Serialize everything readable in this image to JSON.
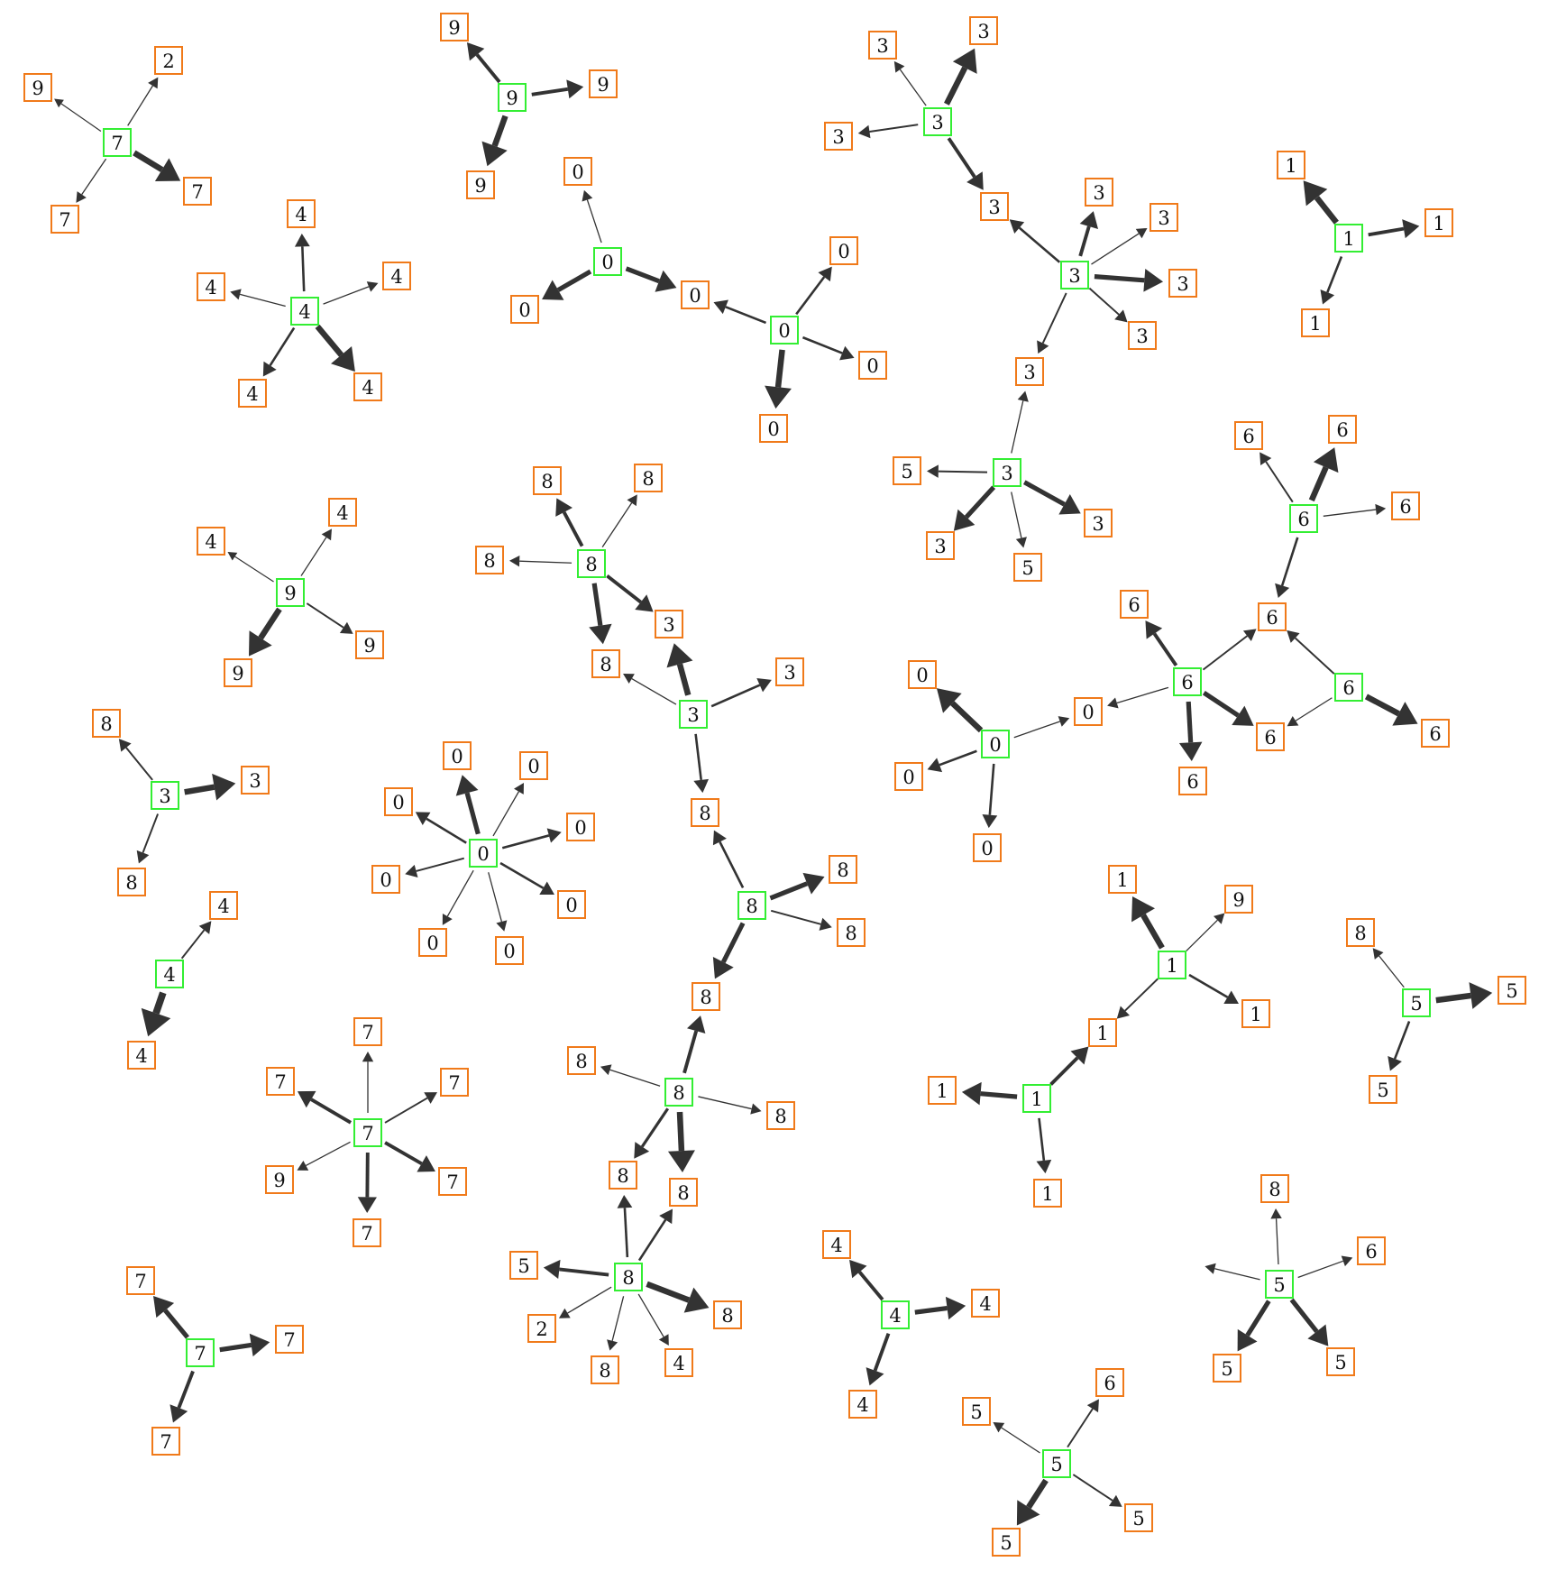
{
  "colors": {
    "center": "#33ee33",
    "neighbor": "#f07a1a",
    "arrow": "#333333"
  },
  "nodes": [
    {
      "id": "c7a",
      "label": "7",
      "role": "center"
    },
    {
      "id": "n2",
      "label": "2",
      "role": "neighbor"
    },
    {
      "id": "n9a",
      "label": "9",
      "role": "neighbor"
    },
    {
      "id": "n7a",
      "label": "7",
      "role": "neighbor"
    },
    {
      "id": "n7b",
      "label": "7",
      "role": "neighbor"
    },
    {
      "id": "c9a",
      "label": "9",
      "role": "center"
    },
    {
      "id": "n9b",
      "label": "9",
      "role": "neighbor"
    },
    {
      "id": "n9c",
      "label": "9",
      "role": "neighbor"
    },
    {
      "id": "n9d",
      "label": "9",
      "role": "neighbor"
    },
    {
      "id": "c4a",
      "label": "4",
      "role": "center"
    },
    {
      "id": "n4a",
      "label": "4",
      "role": "neighbor"
    },
    {
      "id": "n4b",
      "label": "4",
      "role": "neighbor"
    },
    {
      "id": "n4c",
      "label": "4",
      "role": "neighbor"
    },
    {
      "id": "n4d",
      "label": "4",
      "role": "neighbor"
    },
    {
      "id": "n4e",
      "label": "4",
      "role": "neighbor"
    },
    {
      "id": "c0a",
      "label": "0",
      "role": "center"
    },
    {
      "id": "n0a",
      "label": "0",
      "role": "neighbor"
    },
    {
      "id": "n0b",
      "label": "0",
      "role": "neighbor"
    },
    {
      "id": "n0c",
      "label": "0",
      "role": "neighbor"
    },
    {
      "id": "c0b",
      "label": "0",
      "role": "center"
    },
    {
      "id": "n0d",
      "label": "0",
      "role": "neighbor"
    },
    {
      "id": "n0e",
      "label": "0",
      "role": "neighbor"
    },
    {
      "id": "n0f",
      "label": "0",
      "role": "neighbor"
    },
    {
      "id": "c3a",
      "label": "3",
      "role": "center"
    },
    {
      "id": "n3a",
      "label": "3",
      "role": "neighbor"
    },
    {
      "id": "n3b",
      "label": "3",
      "role": "neighbor"
    },
    {
      "id": "n3c",
      "label": "3",
      "role": "neighbor"
    },
    {
      "id": "n3d",
      "label": "3",
      "role": "neighbor"
    },
    {
      "id": "c3b",
      "label": "3",
      "role": "center"
    },
    {
      "id": "n3e",
      "label": "3",
      "role": "neighbor"
    },
    {
      "id": "n3f",
      "label": "3",
      "role": "neighbor"
    },
    {
      "id": "n3g",
      "label": "3",
      "role": "neighbor"
    },
    {
      "id": "n3h",
      "label": "3",
      "role": "neighbor"
    },
    {
      "id": "n3i",
      "label": "3",
      "role": "neighbor"
    },
    {
      "id": "c3c",
      "label": "3",
      "role": "center"
    },
    {
      "id": "n5a",
      "label": "5",
      "role": "neighbor"
    },
    {
      "id": "n3j",
      "label": "3",
      "role": "neighbor"
    },
    {
      "id": "n3k",
      "label": "3",
      "role": "neighbor"
    },
    {
      "id": "n5b",
      "label": "5",
      "role": "neighbor"
    },
    {
      "id": "c1a",
      "label": "1",
      "role": "center"
    },
    {
      "id": "n1a",
      "label": "1",
      "role": "neighbor"
    },
    {
      "id": "n1b",
      "label": "1",
      "role": "neighbor"
    },
    {
      "id": "n1c",
      "label": "1",
      "role": "neighbor"
    },
    {
      "id": "c6a",
      "label": "6",
      "role": "center"
    },
    {
      "id": "n6a",
      "label": "6",
      "role": "neighbor"
    },
    {
      "id": "n6b",
      "label": "6",
      "role": "neighbor"
    },
    {
      "id": "n6c",
      "label": "6",
      "role": "neighbor"
    },
    {
      "id": "n6d",
      "label": "6",
      "role": "neighbor"
    },
    {
      "id": "c6b",
      "label": "6",
      "role": "center"
    },
    {
      "id": "n6e",
      "label": "6",
      "role": "neighbor"
    },
    {
      "id": "n0g",
      "label": "0",
      "role": "neighbor"
    },
    {
      "id": "n6f",
      "label": "6",
      "role": "neighbor"
    },
    {
      "id": "n6g",
      "label": "6",
      "role": "neighbor"
    },
    {
      "id": "c6c",
      "label": "6",
      "role": "center"
    },
    {
      "id": "n6h",
      "label": "6",
      "role": "neighbor"
    },
    {
      "id": "c0c",
      "label": "0",
      "role": "center"
    },
    {
      "id": "n0h",
      "label": "0",
      "role": "neighbor"
    },
    {
      "id": "n0i",
      "label": "0",
      "role": "neighbor"
    },
    {
      "id": "n0j",
      "label": "0",
      "role": "neighbor"
    },
    {
      "id": "c9b",
      "label": "9",
      "role": "center"
    },
    {
      "id": "n4f",
      "label": "4",
      "role": "neighbor"
    },
    {
      "id": "n4g",
      "label": "4",
      "role": "neighbor"
    },
    {
      "id": "n9e",
      "label": "9",
      "role": "neighbor"
    },
    {
      "id": "n9f",
      "label": "9",
      "role": "neighbor"
    },
    {
      "id": "c8a",
      "label": "8",
      "role": "center"
    },
    {
      "id": "n8a",
      "label": "8",
      "role": "neighbor"
    },
    {
      "id": "n8b",
      "label": "8",
      "role": "neighbor"
    },
    {
      "id": "n8c",
      "label": "8",
      "role": "neighbor"
    },
    {
      "id": "n3l",
      "label": "3",
      "role": "neighbor"
    },
    {
      "id": "n8d",
      "label": "8",
      "role": "neighbor"
    },
    {
      "id": "c3d",
      "label": "3",
      "role": "center"
    },
    {
      "id": "n3m",
      "label": "3",
      "role": "neighbor"
    },
    {
      "id": "n8e",
      "label": "8",
      "role": "neighbor"
    },
    {
      "id": "c3e",
      "label": "3",
      "role": "center"
    },
    {
      "id": "n8f",
      "label": "8",
      "role": "neighbor"
    },
    {
      "id": "n3n",
      "label": "3",
      "role": "neighbor"
    },
    {
      "id": "n8g",
      "label": "8",
      "role": "neighbor"
    },
    {
      "id": "c0d",
      "label": "0",
      "role": "center"
    },
    {
      "id": "n0k",
      "label": "0",
      "role": "neighbor"
    },
    {
      "id": "n0l",
      "label": "0",
      "role": "neighbor"
    },
    {
      "id": "n0m",
      "label": "0",
      "role": "neighbor"
    },
    {
      "id": "n0n",
      "label": "0",
      "role": "neighbor"
    },
    {
      "id": "n0o",
      "label": "0",
      "role": "neighbor"
    },
    {
      "id": "n0p",
      "label": "0",
      "role": "neighbor"
    },
    {
      "id": "n0q",
      "label": "0",
      "role": "neighbor"
    },
    {
      "id": "n0r",
      "label": "0",
      "role": "neighbor"
    },
    {
      "id": "c8b",
      "label": "8",
      "role": "center"
    },
    {
      "id": "n8h",
      "label": "8",
      "role": "neighbor"
    },
    {
      "id": "n8i",
      "label": "8",
      "role": "neighbor"
    },
    {
      "id": "c4b",
      "label": "4",
      "role": "center"
    },
    {
      "id": "n4h",
      "label": "4",
      "role": "neighbor"
    },
    {
      "id": "n4i",
      "label": "4",
      "role": "neighbor"
    },
    {
      "id": "c7b",
      "label": "7",
      "role": "center"
    },
    {
      "id": "n7c",
      "label": "7",
      "role": "neighbor"
    },
    {
      "id": "n7d",
      "label": "7",
      "role": "neighbor"
    },
    {
      "id": "n7e",
      "label": "7",
      "role": "neighbor"
    },
    {
      "id": "n9g",
      "label": "9",
      "role": "neighbor"
    },
    {
      "id": "n7f",
      "label": "7",
      "role": "neighbor"
    },
    {
      "id": "n7g",
      "label": "7",
      "role": "neighbor"
    },
    {
      "id": "c8c",
      "label": "8",
      "role": "center"
    },
    {
      "id": "n8j",
      "label": "8",
      "role": "neighbor"
    },
    {
      "id": "n8k",
      "label": "8",
      "role": "neighbor"
    },
    {
      "id": "n8l",
      "label": "8",
      "role": "neighbor"
    },
    {
      "id": "c8d",
      "label": "8",
      "role": "center"
    },
    {
      "id": "n8m",
      "label": "8",
      "role": "neighbor"
    },
    {
      "id": "n5c",
      "label": "5",
      "role": "neighbor"
    },
    {
      "id": "n2b",
      "label": "2",
      "role": "neighbor"
    },
    {
      "id": "n8n",
      "label": "8",
      "role": "neighbor"
    },
    {
      "id": "n8o",
      "label": "8",
      "role": "neighbor"
    },
    {
      "id": "n4j",
      "label": "4",
      "role": "neighbor"
    },
    {
      "id": "c7c",
      "label": "7",
      "role": "center"
    },
    {
      "id": "n7h",
      "label": "7",
      "role": "neighbor"
    },
    {
      "id": "n7i",
      "label": "7",
      "role": "neighbor"
    },
    {
      "id": "n7j",
      "label": "7",
      "role": "neighbor"
    },
    {
      "id": "c4c",
      "label": "4",
      "role": "center"
    },
    {
      "id": "n4k",
      "label": "4",
      "role": "neighbor"
    },
    {
      "id": "n4l",
      "label": "4",
      "role": "neighbor"
    },
    {
      "id": "n4m",
      "label": "4",
      "role": "neighbor"
    },
    {
      "id": "c1b",
      "label": "1",
      "role": "center"
    },
    {
      "id": "n1d",
      "label": "1",
      "role": "neighbor"
    },
    {
      "id": "n9h",
      "label": "9",
      "role": "neighbor"
    },
    {
      "id": "n1e",
      "label": "1",
      "role": "neighbor"
    },
    {
      "id": "n1f",
      "label": "1",
      "role": "neighbor"
    },
    {
      "id": "c1c",
      "label": "1",
      "role": "center"
    },
    {
      "id": "n1g",
      "label": "1",
      "role": "neighbor"
    },
    {
      "id": "n1h",
      "label": "1",
      "role": "neighbor"
    },
    {
      "id": "c5a",
      "label": "5",
      "role": "center"
    },
    {
      "id": "n8p",
      "label": "8",
      "role": "neighbor"
    },
    {
      "id": "n5d",
      "label": "5",
      "role": "neighbor"
    },
    {
      "id": "n5e",
      "label": "5",
      "role": "neighbor"
    },
    {
      "id": "c5b",
      "label": "5",
      "role": "center"
    },
    {
      "id": "n8q",
      "label": "8",
      "role": "neighbor"
    },
    {
      "id": "n8r",
      "label": "8",
      "role": "neighbor"
    },
    {
      "id": "n6i",
      "label": "6",
      "role": "neighbor"
    },
    {
      "id": "n5f",
      "label": "5",
      "role": "neighbor"
    },
    {
      "id": "n5g",
      "label": "5",
      "role": "neighbor"
    },
    {
      "id": "c5c",
      "label": "5",
      "role": "center"
    },
    {
      "id": "n6j",
      "label": "6",
      "role": "neighbor"
    },
    {
      "id": "n5h",
      "label": "5",
      "role": "neighbor"
    },
    {
      "id": "n5i",
      "label": "5",
      "role": "neighbor"
    },
    {
      "id": "n5j",
      "label": "5",
      "role": "neighbor"
    }
  ],
  "edges": [
    {
      "from": "c7a",
      "to": "n2",
      "weight": 1
    },
    {
      "from": "c7a",
      "to": "n9a",
      "weight": 0.5
    },
    {
      "from": "c7a",
      "to": "n7a",
      "weight": 1
    },
    {
      "from": "c7a",
      "to": "n7b",
      "weight": 5
    },
    {
      "from": "c9a",
      "to": "n9b",
      "weight": 3
    },
    {
      "from": "c9a",
      "to": "n9c",
      "weight": 3
    },
    {
      "from": "c9a",
      "to": "n9d",
      "weight": 5
    },
    {
      "from": "c4a",
      "to": "n4a",
      "weight": 2
    },
    {
      "from": "c4a",
      "to": "n4b",
      "weight": 1
    },
    {
      "from": "c4a",
      "to": "n4c",
      "weight": 1
    },
    {
      "from": "c4a",
      "to": "n4d",
      "weight": 2
    },
    {
      "from": "c4a",
      "to": "n4e",
      "weight": 5
    },
    {
      "from": "c0a",
      "to": "n0a",
      "weight": 1
    },
    {
      "from": "c0a",
      "to": "n0b",
      "weight": 4
    },
    {
      "from": "c0a",
      "to": "n0c",
      "weight": 4
    },
    {
      "from": "c0b",
      "to": "n0c",
      "weight": 2
    },
    {
      "from": "c0b",
      "to": "n0d",
      "weight": 2
    },
    {
      "from": "c0b",
      "to": "n0e",
      "weight": 2
    },
    {
      "from": "c0b",
      "to": "n0f",
      "weight": 5
    },
    {
      "from": "c3a",
      "to": "n3a",
      "weight": 1
    },
    {
      "from": "c3a",
      "to": "n3b",
      "weight": 5
    },
    {
      "from": "c3a",
      "to": "n3c",
      "weight": 1.5
    },
    {
      "from": "c3a",
      "to": "n3d",
      "weight": 3
    },
    {
      "from": "c3b",
      "to": "n3d",
      "weight": 2
    },
    {
      "from": "c3b",
      "to": "n3e",
      "weight": 3
    },
    {
      "from": "c3b",
      "to": "n3f",
      "weight": 1
    },
    {
      "from": "c3b",
      "to": "n3g",
      "weight": 4
    },
    {
      "from": "c3b",
      "to": "n3h",
      "weight": 1.5
    },
    {
      "from": "c3b",
      "to": "n3i",
      "weight": 1.5
    },
    {
      "from": "c3c",
      "to": "n3i",
      "weight": 1
    },
    {
      "from": "c3c",
      "to": "n5a",
      "weight": 1.5
    },
    {
      "from": "c3c",
      "to": "n3j",
      "weight": 4
    },
    {
      "from": "c3c",
      "to": "n3k",
      "weight": 4
    },
    {
      "from": "c3c",
      "to": "n5b",
      "weight": 1
    },
    {
      "from": "c1a",
      "to": "n1a",
      "weight": 5
    },
    {
      "from": "c1a",
      "to": "n1b",
      "weight": 3
    },
    {
      "from": "c1a",
      "to": "n1c",
      "weight": 2
    },
    {
      "from": "c6a",
      "to": "n6a",
      "weight": 1.5
    },
    {
      "from": "c6a",
      "to": "n6b",
      "weight": 5
    },
    {
      "from": "c6a",
      "to": "n6c",
      "weight": 1
    },
    {
      "from": "c6a",
      "to": "n6d",
      "weight": 2
    },
    {
      "from": "c6b",
      "to": "n6d",
      "weight": 1.5
    },
    {
      "from": "c6b",
      "to": "n6e",
      "weight": 3
    },
    {
      "from": "c6b",
      "to": "n0g",
      "weight": 1
    },
    {
      "from": "c6b",
      "to": "n6f",
      "weight": 4
    },
    {
      "from": "c6b",
      "to": "n6g",
      "weight": 4
    },
    {
      "from": "c6c",
      "to": "n6d",
      "weight": 1.5
    },
    {
      "from": "c6c",
      "to": "n6f",
      "weight": 1
    },
    {
      "from": "c6c",
      "to": "n6h",
      "weight": 5
    },
    {
      "from": "c0c",
      "to": "n0g",
      "weight": 1
    },
    {
      "from": "c0c",
      "to": "n0h",
      "weight": 5
    },
    {
      "from": "c0c",
      "to": "n0i",
      "weight": 2
    },
    {
      "from": "c0c",
      "to": "n0j",
      "weight": 2
    },
    {
      "from": "c9b",
      "to": "n4f",
      "weight": 0.5
    },
    {
      "from": "c9b",
      "to": "n4g",
      "weight": 1
    },
    {
      "from": "c9b",
      "to": "n9e",
      "weight": 5
    },
    {
      "from": "c9b",
      "to": "n9f",
      "weight": 1.5
    },
    {
      "from": "c8a",
      "to": "n8a",
      "weight": 3
    },
    {
      "from": "c8a",
      "to": "n8b",
      "weight": 1
    },
    {
      "from": "c8a",
      "to": "n8c",
      "weight": 1
    },
    {
      "from": "c8a",
      "to": "n3l",
      "weight": 3
    },
    {
      "from": "c8a",
      "to": "n8d",
      "weight": 4
    },
    {
      "from": "c3d",
      "to": "n3l",
      "weight": 5
    },
    {
      "from": "c3d",
      "to": "n3m",
      "weight": 2
    },
    {
      "from": "c3d",
      "to": "n8d",
      "weight": 1
    },
    {
      "from": "c3d",
      "to": "n8e",
      "weight": 2
    },
    {
      "from": "c3e",
      "to": "n8f",
      "weight": 1.5
    },
    {
      "from": "c3e",
      "to": "n3n",
      "weight": 5
    },
    {
      "from": "c3e",
      "to": "n8g",
      "weight": 1.5
    },
    {
      "from": "c0d",
      "to": "n0k",
      "weight": 4
    },
    {
      "from": "c0d",
      "to": "n0l",
      "weight": 1
    },
    {
      "from": "c0d",
      "to": "n0m",
      "weight": 2
    },
    {
      "from": "c0d",
      "to": "n0n",
      "weight": 2
    },
    {
      "from": "c0d",
      "to": "n0o",
      "weight": 1.5
    },
    {
      "from": "c0d",
      "to": "n0p",
      "weight": 2
    },
    {
      "from": "c0d",
      "to": "n0q",
      "weight": 1
    },
    {
      "from": "c0d",
      "to": "n0r",
      "weight": 1
    },
    {
      "from": "c8b",
      "to": "n8e",
      "weight": 2
    },
    {
      "from": "c8b",
      "to": "n8h",
      "weight": 4
    },
    {
      "from": "c8b",
      "to": "n8i",
      "weight": 1.5
    },
    {
      "from": "c8b",
      "to": "n8j",
      "weight": 4
    },
    {
      "from": "c4b",
      "to": "n4h",
      "weight": 1.5
    },
    {
      "from": "c4b",
      "to": "n4i",
      "weight": 6
    },
    {
      "from": "c7b",
      "to": "n7c",
      "weight": 1
    },
    {
      "from": "c7b",
      "to": "n7d",
      "weight": 3
    },
    {
      "from": "c7b",
      "to": "n7e",
      "weight": 1.5
    },
    {
      "from": "c7b",
      "to": "n9g",
      "weight": 1
    },
    {
      "from": "c7b",
      "to": "n7f",
      "weight": 3
    },
    {
      "from": "c7b",
      "to": "n7g",
      "weight": 3
    },
    {
      "from": "c8c",
      "to": "n8j",
      "weight": 3
    },
    {
      "from": "c8c",
      "to": "n8k",
      "weight": 1
    },
    {
      "from": "c8c",
      "to": "n8l",
      "weight": 1
    },
    {
      "from": "c8c",
      "to": "n8m",
      "weight": 2.5
    },
    {
      "from": "c8c",
      "to": "n8n",
      "weight": 5
    },
    {
      "from": "c8d",
      "to": "n8m",
      "weight": 2
    },
    {
      "from": "c8d",
      "to": "n8n",
      "weight": 2
    },
    {
      "from": "c8d",
      "to": "n5c",
      "weight": 3
    },
    {
      "from": "c8d",
      "to": "n2b",
      "weight": 1
    },
    {
      "from": "c8d",
      "to": "n8o",
      "weight": 1
    },
    {
      "from": "c8d",
      "to": "n4j",
      "weight": 1
    },
    {
      "from": "c8d",
      "to": "n8r",
      "weight": 5
    },
    {
      "from": "c7c",
      "to": "n7h",
      "weight": 4
    },
    {
      "from": "c7c",
      "to": "n7i",
      "weight": 4
    },
    {
      "from": "c7c",
      "to": "n7j",
      "weight": 3
    },
    {
      "from": "c4c",
      "to": "n4k",
      "weight": 3
    },
    {
      "from": "c4c",
      "to": "n4l",
      "weight": 4
    },
    {
      "from": "c4c",
      "to": "n4m",
      "weight": 3
    },
    {
      "from": "c1b",
      "to": "n1d",
      "weight": 5
    },
    {
      "from": "c1b",
      "to": "n9h",
      "weight": 1
    },
    {
      "from": "c1b",
      "to": "n1e",
      "weight": 2
    },
    {
      "from": "c1b",
      "to": "n1f",
      "weight": 1.5
    },
    {
      "from": "c1c",
      "to": "n1f",
      "weight": 3
    },
    {
      "from": "c1c",
      "to": "n1g",
      "weight": 4
    },
    {
      "from": "c1c",
      "to": "n1h",
      "weight": 2
    },
    {
      "from": "c5a",
      "to": "n8p",
      "weight": 1
    },
    {
      "from": "c5a",
      "to": "n5d",
      "weight": 5
    },
    {
      "from": "c5a",
      "to": "n5e",
      "weight": 2
    },
    {
      "from": "c5b",
      "to": "n8q",
      "weight": 1
    },
    {
      "from": "c5b",
      "to": "n6i",
      "weight": 1
    },
    {
      "from": "c5b",
      "to": "n5f",
      "weight": 4
    },
    {
      "from": "c5b",
      "to": "n5g",
      "weight": 4
    },
    {
      "from": "c5b",
      "to": "n8s",
      "weight": 1
    },
    {
      "from": "c5c",
      "to": "n6j",
      "weight": 1.5
    },
    {
      "from": "c5c",
      "to": "n5h",
      "weight": 1
    },
    {
      "from": "c5c",
      "to": "n5i",
      "weight": 5
    },
    {
      "from": "c5c",
      "to": "n5j",
      "weight": 1.5
    }
  ]
}
